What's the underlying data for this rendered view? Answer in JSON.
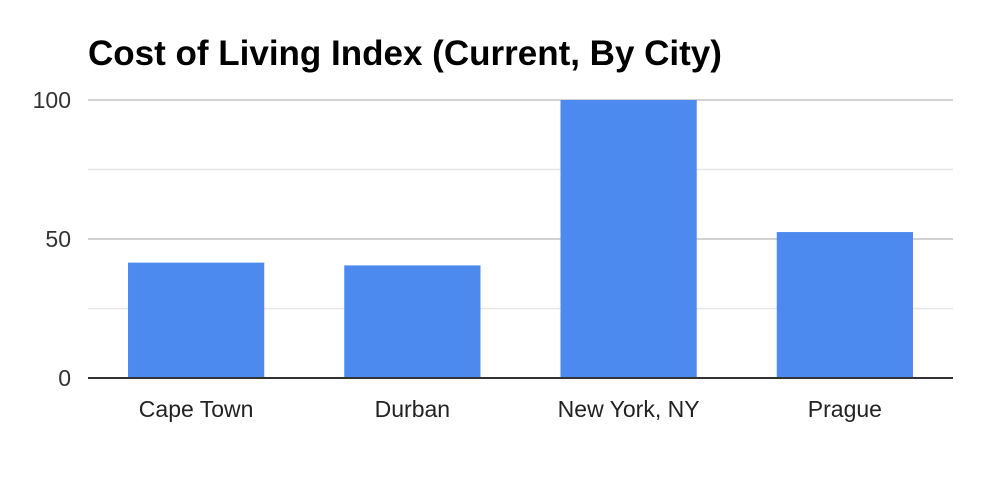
{
  "chart_data": {
    "type": "bar",
    "title": "Cost of Living Index (Current, By City)",
    "xlabel": "",
    "ylabel": "",
    "categories": [
      "Cape Town",
      "Durban",
      "New York, NY",
      "Prague"
    ],
    "series": [
      {
        "values": [
          41.5,
          40.5,
          100,
          52.5
        ],
        "color": "#4d8af0"
      }
    ],
    "ylim": [
      0,
      100
    ],
    "yticks": [
      0,
      50,
      100
    ],
    "yticklabels": [
      "0",
      "50",
      "100"
    ],
    "minor_grid_values": [
      25,
      75
    ],
    "grid": true,
    "legend": "none",
    "colors": {
      "bar": "#4d8af0",
      "gridline": "#cccccc",
      "minor_gridline": "#e6e6e6",
      "baseline": "#333333",
      "title": "#000000"
    }
  }
}
